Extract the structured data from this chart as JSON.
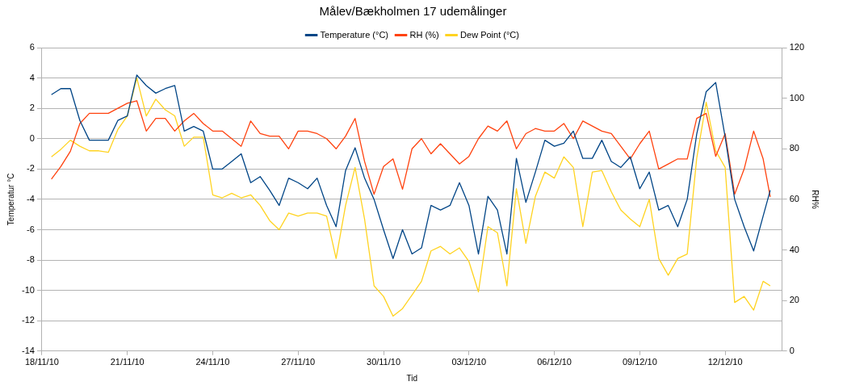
{
  "chart_data": {
    "type": "line",
    "title": "Målev/Bækholmen 17 udemålinger",
    "xlabel": "Tid",
    "ylabel": "Temperatur °C",
    "y2label": "RH%",
    "x": [
      "--11-18T08:00",
      "--11-18T16:00",
      "--11-19T00:00",
      "--11-19T08:00",
      "--11-19T16:00",
      "--11-20T00:00",
      "--11-20T08:00",
      "--11-20T16:00",
      "--11-21T00:00",
      "--11-21T08:00",
      "--11-21T16:00",
      "--11-22T00:00",
      "--11-22T08:00",
      "--11-22T16:00",
      "--11-23T00:00",
      "--11-23T08:00",
      "--11-23T16:00",
      "--11-24T00:00",
      "--11-24T08:00",
      "--11-24T16:00",
      "--11-25T00:00",
      "--11-25T08:00",
      "--11-25T16:00",
      "--11-26T00:00",
      "--11-26T08:00",
      "--11-26T16:00",
      "--11-27T00:00",
      "--11-27T08:00",
      "--11-27T16:00",
      "--11-28T00:00",
      "--11-28T08:00",
      "--11-28T16:00",
      "--11-29T00:00",
      "--11-29T08:00",
      "--11-29T16:00",
      "--11-30T00:00",
      "--11-30T08:00",
      "--11-30T16:00",
      "--12-01T00:00",
      "--12-01T08:00",
      "--12-01T16:00",
      "--12-02T00:00",
      "--12-02T08:00",
      "--12-02T16:00",
      "--12-03T00:00",
      "--12-03T08:00",
      "--12-03T16:00",
      "--12-04T00:00",
      "--12-04T08:00",
      "--12-04T16:00",
      "--12-05T00:00",
      "--12-05T08:00",
      "--12-05T16:00",
      "--12-06T00:00",
      "--12-06T08:00",
      "--12-06T16:00",
      "--12-07T00:00",
      "--12-07T08:00",
      "--12-07T16:00",
      "--12-08T00:00",
      "--12-08T08:00",
      "--12-08T16:00",
      "--12-09T00:00",
      "--12-09T08:00",
      "--12-09T16:00",
      "--12-10T00:00",
      "--12-10T08:00",
      "--12-10T16:00",
      "--12-11T00:00",
      "--12-11T08:00",
      "--12-11T16:00",
      "--12-12T00:00",
      "--12-12T08:00",
      "--12-12T16:00",
      "--12-13T00:00",
      "--12-13T08:00",
      "--12-13T14:00"
    ],
    "series": [
      {
        "name": "Temperature (°C)",
        "color": "#004586",
        "values": [
          2.9,
          3.3,
          3.3,
          1.2,
          -0.1,
          -0.1,
          -0.1,
          1.2,
          1.5,
          4.2,
          3.5,
          3.0,
          3.3,
          3.5,
          0.5,
          0.8,
          0.5,
          -2.0,
          -2.0,
          -1.5,
          -1.0,
          -2.9,
          -2.5,
          -3.4,
          -4.4,
          -2.6,
          -2.9,
          -3.3,
          -2.6,
          -4.4,
          -5.8,
          -2.1,
          -0.6,
          -2.6,
          -4.0,
          -6.0,
          -7.9,
          -6.0,
          -7.6,
          -7.2,
          -4.4,
          -4.7,
          -4.4,
          -2.9,
          -4.4,
          -7.6,
          -3.8,
          -4.7,
          -7.6,
          -1.3,
          -4.2,
          -2.2,
          -0.1,
          -0.5,
          -0.3,
          0.5,
          -1.3,
          -1.3,
          -0.1,
          -1.5,
          -1.9,
          -1.2,
          -3.3,
          -2.2,
          -4.7,
          -4.4,
          -5.8,
          -4.0,
          0.3,
          3.1,
          3.7,
          0.1,
          -4.0,
          -5.8,
          -7.4,
          -5.1,
          -3.4
        ]
      },
      {
        "name": "RH (%)",
        "color": "#ff420e",
        "axis": "y2",
        "values": [
          68,
          73,
          79,
          90,
          94,
          94,
          94,
          96,
          98,
          99,
          87,
          92,
          92,
          87,
          91,
          94,
          90,
          87,
          87,
          84,
          81,
          91,
          86,
          85,
          85,
          80,
          87,
          87,
          86,
          84,
          80,
          85,
          92,
          75,
          62,
          73,
          76,
          64,
          80,
          84,
          78,
          82,
          78,
          74,
          77,
          84,
          89,
          87,
          91,
          80,
          86,
          88,
          87,
          87,
          90,
          84,
          91,
          89,
          87,
          86,
          81,
          76,
          82,
          87,
          72,
          74,
          76,
          76,
          92,
          94,
          77,
          86,
          62,
          72,
          87,
          76,
          61
        ]
      },
      {
        "name": "Dew Point (°C)",
        "color": "#ffd320",
        "values": [
          -1.2,
          -0.7,
          -0.1,
          -0.5,
          -0.8,
          -0.8,
          -0.9,
          0.6,
          1.5,
          4.0,
          1.5,
          2.6,
          1.9,
          1.5,
          -0.5,
          0.1,
          0.1,
          -3.7,
          -3.9,
          -3.6,
          -3.9,
          -3.7,
          -4.4,
          -5.4,
          -6.0,
          -4.9,
          -5.1,
          -4.9,
          -4.9,
          -5.1,
          -7.9,
          -4.4,
          -1.9,
          -5.3,
          -9.7,
          -10.4,
          -11.7,
          -11.2,
          -10.3,
          -9.4,
          -7.4,
          -7.1,
          -7.6,
          -7.2,
          -8.1,
          -10.1,
          -5.8,
          -6.2,
          -9.7,
          -3.3,
          -6.9,
          -3.8,
          -2.2,
          -2.6,
          -1.2,
          -1.9,
          -5.8,
          -2.2,
          -2.1,
          -3.5,
          -4.7,
          -5.3,
          -5.8,
          -4.0,
          -7.9,
          -9.0,
          -7.9,
          -7.6,
          -1.3,
          2.4,
          -0.8,
          -1.9,
          -10.8,
          -10.4,
          -11.3,
          -9.4,
          -9.7
        ]
      }
    ],
    "xlim": [
      "--11-18",
      "--12-14"
    ],
    "xticks": [
      {
        "value": "--11-18",
        "label": "18/11/10"
      },
      {
        "value": "--11-21",
        "label": "21/11/10"
      },
      {
        "value": "--11-24",
        "label": "24/11/10"
      },
      {
        "value": "--11-27",
        "label": "27/11/10"
      },
      {
        "value": "--11-30",
        "label": "30/11/10"
      },
      {
        "value": "--12-03",
        "label": "03/12/10"
      },
      {
        "value": "--12-06",
        "label": "06/12/10"
      },
      {
        "value": "--12-09",
        "label": "09/12/10"
      },
      {
        "value": "--12-12",
        "label": "12/12/10"
      }
    ],
    "ylim": [
      -14,
      6
    ],
    "yticks": [
      -14,
      -12,
      -10,
      -8,
      -6,
      -4,
      -2,
      0,
      2,
      4,
      6
    ],
    "y2lim": [
      0,
      120
    ],
    "y2ticks": [
      0,
      20,
      40,
      60,
      80,
      100,
      120
    ],
    "grid": "y",
    "legend": "top",
    "marker": "none",
    "line_style": "solid"
  }
}
